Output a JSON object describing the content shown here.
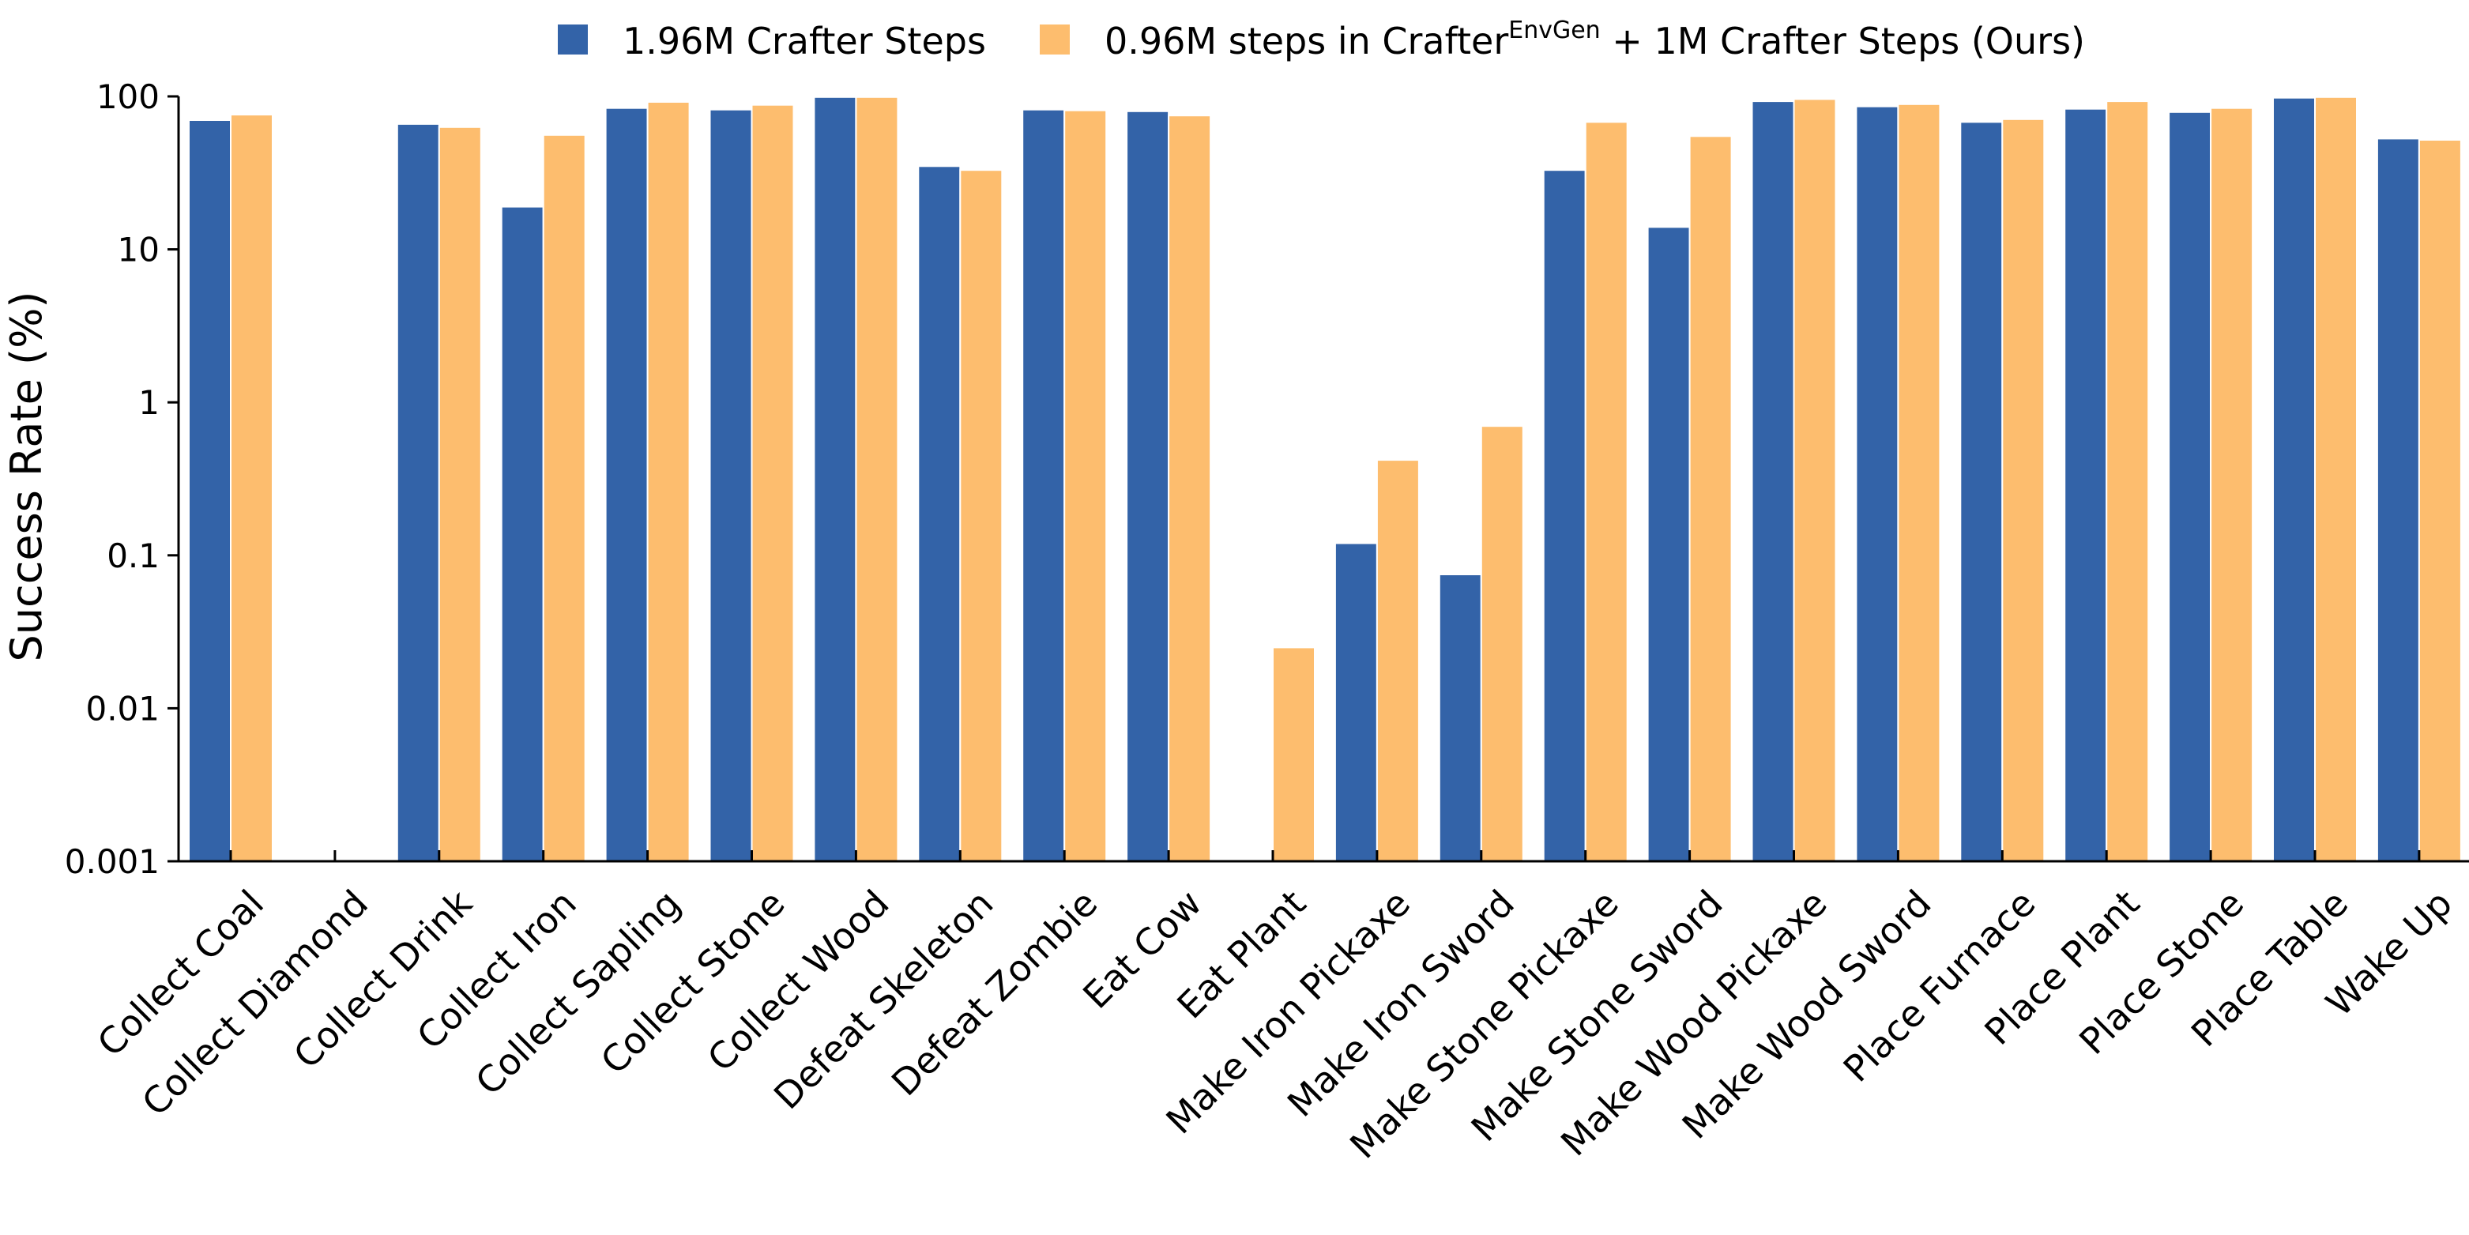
{
  "chart_data": {
    "type": "bar",
    "yscale": "log",
    "ylim": [
      0.001,
      100
    ],
    "ylabel": "Success Rate (%)",
    "xlabel": "",
    "title": "",
    "grid": false,
    "legend_position": "top",
    "yticks": [
      {
        "value": 0.001,
        "label": "0.001"
      },
      {
        "value": 0.01,
        "label": "0.01"
      },
      {
        "value": 0.1,
        "label": "0.1"
      },
      {
        "value": 1,
        "label": "1"
      },
      {
        "value": 10,
        "label": "10"
      },
      {
        "value": 100,
        "label": "100"
      }
    ],
    "categories": [
      "Collect Coal",
      "Collect Diamond",
      "Collect Drink",
      "Collect Iron",
      "Collect Sapling",
      "Collect Stone",
      "Collect Wood",
      "Defeat Skeleton",
      "Defeat Zombie",
      "Eat Cow",
      "Eat Plant",
      "Make Iron Pickaxe",
      "Make Iron Sword",
      "Make Stone Pickaxe",
      "Make Stone Sword",
      "Make Wood Pickaxe",
      "Make Wood Sword",
      "Place Furnace",
      "Place Plant",
      "Place Stone",
      "Place Table",
      "Wake Up"
    ],
    "series": [
      {
        "name": "1.96M Crafter Steps",
        "color": "#3363a8",
        "values": [
          70,
          null,
          66,
          19,
          84,
          82,
          99,
          35,
          82,
          80,
          null,
          0.12,
          0.075,
          33,
          14,
          93,
          86,
          68,
          83,
          79,
          98,
          53
        ]
      },
      {
        "name_parts": {
          "pre": "0.96M steps in Crafter",
          "sup": "EnvGen",
          "post": " + 1M Crafter Steps (Ours)"
        },
        "color": "#fdbd6e",
        "values": [
          76,
          null,
          63,
          56,
          92,
          88,
          99,
          33,
          81,
          75,
          0.025,
          0.42,
          0.7,
          68,
          55,
          96,
          89,
          71,
          93,
          84,
          99,
          52
        ]
      }
    ]
  }
}
